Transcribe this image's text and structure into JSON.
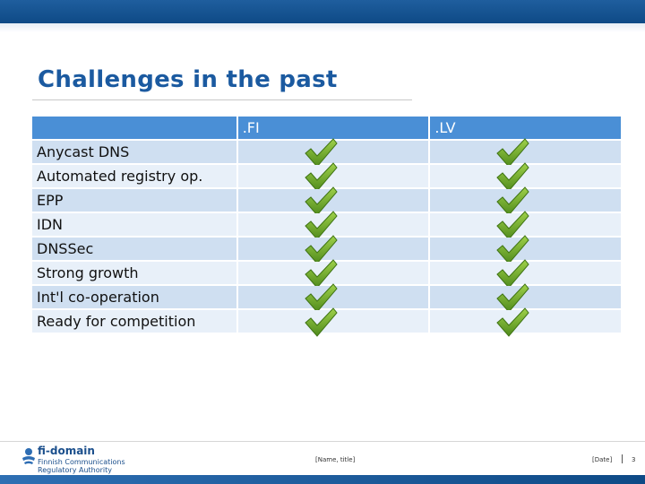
{
  "slide": {
    "title": "Challenges in the past"
  },
  "table": {
    "headers": [
      "",
      ".FI",
      ".LV"
    ],
    "rows": [
      {
        "label": "Anycast DNS",
        "fi": "check",
        "lv": "check"
      },
      {
        "label": "Automated registry op.",
        "fi": "check",
        "lv": "check"
      },
      {
        "label": "EPP",
        "fi": "check",
        "lv": "check"
      },
      {
        "label": "IDN",
        "fi": "check",
        "lv": "check"
      },
      {
        "label": "DNSSec",
        "fi": "check",
        "lv": "check"
      },
      {
        "label": "Strong growth",
        "fi": "check",
        "lv": "check"
      },
      {
        "label": "Int'l co-operation",
        "fi": "check",
        "lv": "check"
      },
      {
        "label": "Ready for competition",
        "fi": "check",
        "lv": "check"
      }
    ]
  },
  "footer": {
    "logo_name": "fi-domain",
    "logo_sub_1": "Finnish Communications",
    "logo_sub_2": "Regulatory Authority",
    "presenter": "[Name, title]",
    "date": "[Date]",
    "page_number": "3"
  },
  "colors": {
    "title": "#1b5aa0",
    "header_bg": "#4a8fd6",
    "row_dark": "#cfdff1",
    "row_light": "#e8f0f9",
    "check": "#6aa82a"
  }
}
